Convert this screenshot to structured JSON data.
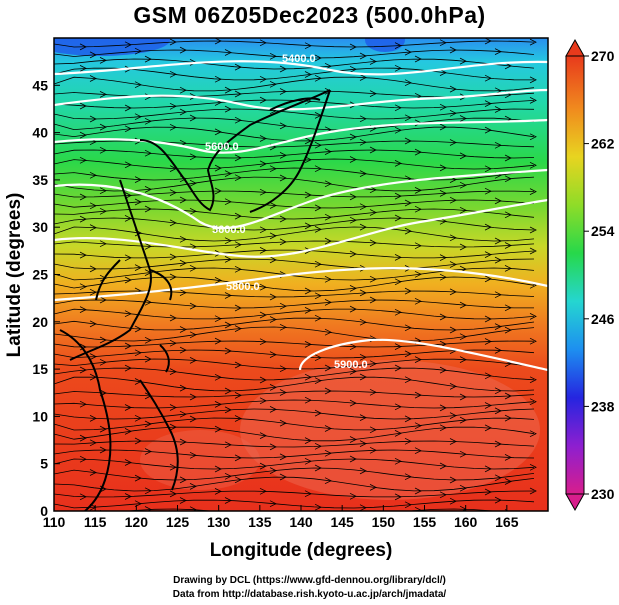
{
  "title": "GSM 06Z05Dec2023 (500.0hPa)",
  "axes": {
    "x_title": "Longitude (degrees)",
    "y_title": "Latitude  (degrees)",
    "x_ticks": [
      "110",
      "115",
      "120",
      "125",
      "130",
      "135",
      "140",
      "145",
      "150",
      "155",
      "160",
      "165"
    ],
    "y_ticks": [
      "0",
      "5",
      "10",
      "15",
      "20",
      "25",
      "30",
      "35",
      "40",
      "45"
    ]
  },
  "colorbar": {
    "labels": [
      "270",
      "262",
      "254",
      "246",
      "238",
      "230"
    ],
    "min": 230,
    "max": 270,
    "colors": [
      "#d81e8c",
      "#8d1fd0",
      "#2525e0",
      "#1d8ff0",
      "#25d6d0",
      "#27d84a",
      "#8fdc28",
      "#e8d420",
      "#f08a1e",
      "#e83a1c"
    ]
  },
  "contours": {
    "labels": [
      "5400.0",
      "5600.0",
      "5800.0",
      "5900.0"
    ]
  },
  "credits": {
    "line1": "Drawing by DCL (https://www.gfd-dennou.org/library/dcl/)",
    "line2": "Data from http://database.rish.kyoto-u.ac.jp/arch/jmadata/"
  }
}
